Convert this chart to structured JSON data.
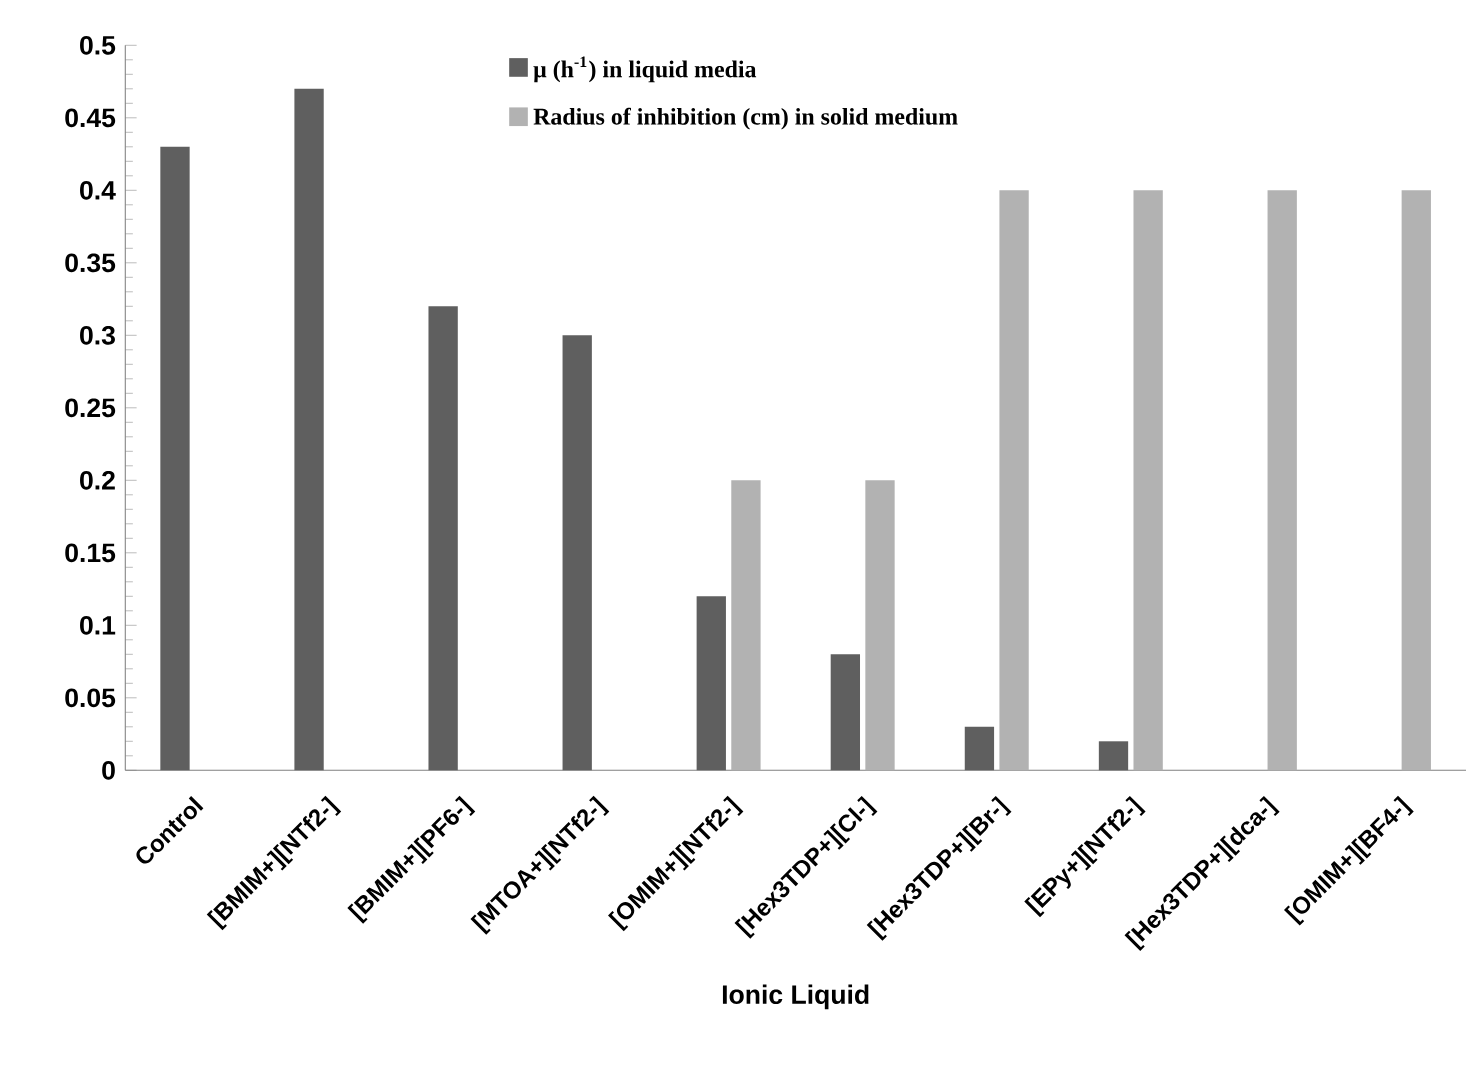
{
  "chart_data": {
    "type": "bar",
    "xlabel": "Ionic Liquid",
    "categories": [
      "Control",
      "[BMIM+][NTf2-]",
      "[BMIM+][PF6-]",
      "[MTOA+][NTf2-]",
      "[OMIM+][NTf2-]",
      "[Hex3TDP+][Cl-]",
      "[Hex3TDP+][Br-]",
      "[EPy+][NTf2-]",
      "[Hex3TDP+][dca-]",
      "[OMIM+][BF4-]"
    ],
    "series": [
      {
        "name": "μ (h$^{-1}$) in liquid media",
        "color": "#5f5f5f",
        "values": [
          0.43,
          0.47,
          0.32,
          0.3,
          0.12,
          0.08,
          0.03,
          0.02,
          null,
          null
        ]
      },
      {
        "name": "Radius of inhibition (cm) in solid medium",
        "color": "#b2b2b2",
        "values": [
          null,
          null,
          null,
          null,
          0.2,
          0.2,
          0.4,
          0.4,
          0.4,
          0.4
        ]
      }
    ],
    "ylim": [
      0,
      0.5
    ],
    "yticks": [
      0,
      0.05,
      0.1,
      0.15,
      0.2,
      0.25,
      0.3,
      0.35,
      0.4,
      0.45,
      0.5
    ],
    "grid": false,
    "legend": "top"
  }
}
